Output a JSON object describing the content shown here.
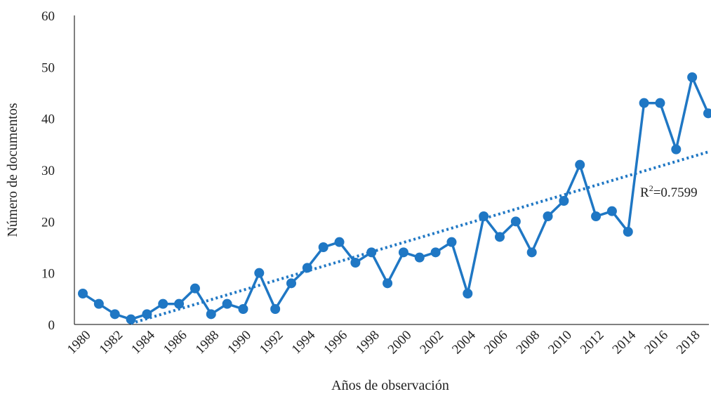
{
  "chart_data": {
    "type": "line",
    "title": "",
    "xlabel": "Años de observación",
    "ylabel": "Número de documentos",
    "ylim": [
      0,
      60
    ],
    "yticks": [
      0,
      10,
      20,
      30,
      40,
      50,
      60
    ],
    "xticks": [
      "1980",
      "1982",
      "1984",
      "1986",
      "1988",
      "1990",
      "1992",
      "1994",
      "1996",
      "1998",
      "2000",
      "2002",
      "2004",
      "2006",
      "2008",
      "2010",
      "2012",
      "2014",
      "2016",
      "2018"
    ],
    "grid": false,
    "legend": "none",
    "colors": {
      "series": "#1f77c4",
      "axis": "#000000"
    },
    "series": [
      {
        "x": [
          1980,
          1981,
          1982,
          1983,
          1984,
          1985,
          1986,
          1987,
          1988,
          1989,
          1990,
          1991,
          1992,
          1993,
          1994,
          1995,
          1996,
          1997,
          1998,
          1999,
          2000,
          2001,
          2002,
          2003,
          2004,
          2005,
          2006,
          2007,
          2008,
          2009,
          2010,
          2011,
          2012,
          2013,
          2014,
          2015,
          2016,
          2017,
          2018,
          2019
        ],
        "values": [
          6,
          4,
          2,
          1,
          2,
          4,
          4,
          7,
          2,
          4,
          3,
          10,
          3,
          8,
          11,
          15,
          16,
          12,
          14,
          8,
          14,
          13,
          14,
          16,
          6,
          21,
          17,
          20,
          14,
          21,
          24,
          31,
          21,
          22,
          18,
          43,
          43,
          34,
          48,
          41
        ]
      }
    ],
    "trendline": {
      "type": "linear",
      "x_start": 1983,
      "y_start": 0.2,
      "x_end": 2019,
      "y_end": 33.5
    },
    "annotations": {
      "r2_base": "R",
      "r2_sup": "2",
      "r2_value": "=0.7599"
    }
  }
}
